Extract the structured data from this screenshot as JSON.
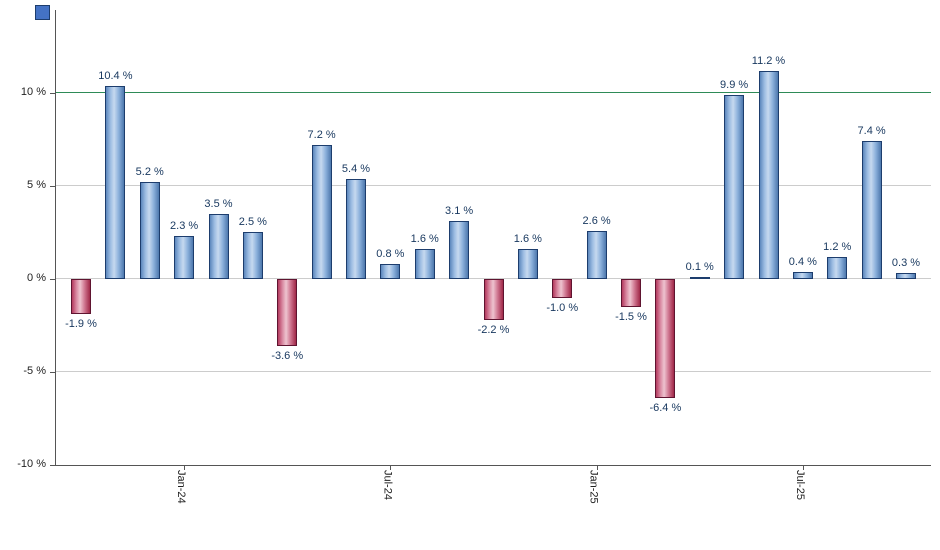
{
  "chart_data": {
    "type": "bar",
    "title": "",
    "xlabel": "",
    "ylabel": "",
    "values": [
      -1.9,
      10.4,
      5.2,
      2.3,
      3.5,
      2.5,
      -3.6,
      7.2,
      5.4,
      0.8,
      1.6,
      3.1,
      -2.2,
      1.6,
      -1.0,
      2.6,
      -1.5,
      -6.4,
      0.1,
      9.9,
      11.2,
      0.4,
      1.2,
      7.4,
      0.3
    ],
    "bar_labels": [
      "-1.9 %",
      "10.4 %",
      "5.2 %",
      "2.3 %",
      "3.5 %",
      "2.5 %",
      "-3.6 %",
      "7.2 %",
      "5.4 %",
      "0.8 %",
      "1.6 %",
      "3.1 %",
      "-2.2 %",
      "1.6 %",
      "-1.0 %",
      "2.6 %",
      "-1.5 %",
      "-6.4 %",
      "0.1 %",
      "9.9 %",
      "11.2 %",
      "0.4 %",
      "1.2 %",
      "7.4 %",
      "0.3 %"
    ],
    "x_tick_labels": [
      {
        "index": 3,
        "label": "Jan-24"
      },
      {
        "index": 9,
        "label": "Jul-24"
      },
      {
        "index": 15,
        "label": "Jan-25"
      },
      {
        "index": 21,
        "label": "Jul-25"
      }
    ],
    "y_ticks": [
      {
        "value": 10,
        "label": "10 %"
      },
      {
        "value": 5,
        "label": "5 %"
      },
      {
        "value": 0,
        "label": "0 %"
      },
      {
        "value": -5,
        "label": "-5 %"
      },
      {
        "value": -10,
        "label": "-10 %"
      }
    ],
    "ylim": [
      -10,
      14.46
    ],
    "grid": "horizontal",
    "legend_position": "top-left",
    "reference_line": {
      "value": 10,
      "color": "#2e8b57"
    },
    "colors": {
      "positive_bar": "#8db1dc",
      "positive_border": "#1d3d6d",
      "negative_bar": "#cf7690",
      "negative_border": "#5f1430",
      "value_label": "#17375e",
      "axis": "#555555",
      "gridline": "#cccccc",
      "legend_marker": "#4472c4"
    }
  }
}
